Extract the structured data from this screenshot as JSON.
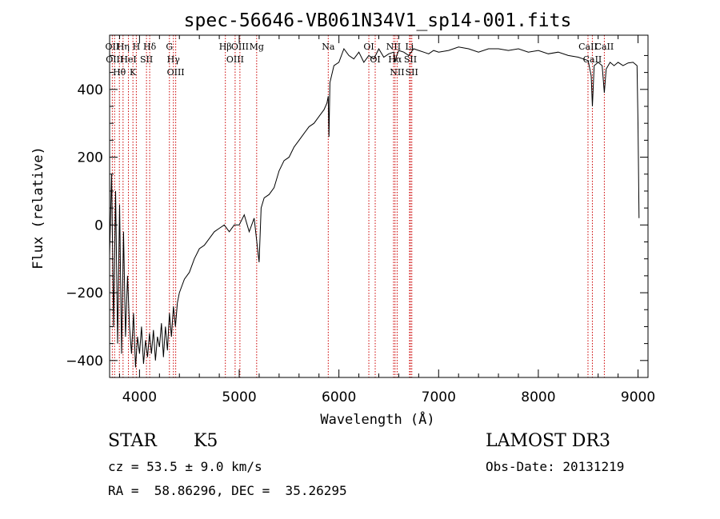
{
  "chart_data": {
    "type": "line",
    "title": "spec-56646-VB061N34V1_sp14-001.fits",
    "xlabel": "Wavelength (Å)",
    "ylabel": "Flux (relative)",
    "xlim": [
      3700,
      9100
    ],
    "ylim": [
      -450,
      560
    ],
    "x_ticks": [
      4000,
      5000,
      6000,
      7000,
      8000,
      9000
    ],
    "y_ticks": [
      -400,
      -200,
      0,
      200,
      400
    ],
    "grid": false,
    "series": [
      {
        "name": "flux",
        "x": [
          3700,
          3720,
          3740,
          3760,
          3780,
          3800,
          3820,
          3840,
          3860,
          3880,
          3900,
          3920,
          3940,
          3960,
          3980,
          4000,
          4020,
          4040,
          4060,
          4080,
          4100,
          4120,
          4140,
          4160,
          4180,
          4200,
          4220,
          4240,
          4260,
          4280,
          4300,
          4320,
          4340,
          4360,
          4380,
          4400,
          4450,
          4500,
          4550,
          4600,
          4650,
          4700,
          4750,
          4800,
          4850,
          4900,
          4950,
          5000,
          5050,
          5100,
          5150,
          5180,
          5200,
          5220,
          5250,
          5300,
          5350,
          5400,
          5450,
          5500,
          5550,
          5600,
          5650,
          5700,
          5750,
          5800,
          5850,
          5880,
          5893,
          5900,
          5910,
          5950,
          6000,
          6050,
          6100,
          6150,
          6200,
          6250,
          6300,
          6350,
          6400,
          6450,
          6500,
          6550,
          6563,
          6580,
          6600,
          6650,
          6700,
          6750,
          6800,
          6850,
          6900,
          6950,
          7000,
          7100,
          7200,
          7300,
          7400,
          7500,
          7600,
          7700,
          7800,
          7900,
          8000,
          8100,
          8200,
          8300,
          8400,
          8450,
          8500,
          8530,
          8542,
          8560,
          8600,
          8640,
          8662,
          8680,
          8720,
          8760,
          8800,
          8850,
          8900,
          8950,
          8990,
          9000,
          9010
        ],
        "values": [
          -90,
          150,
          -300,
          100,
          -350,
          60,
          -380,
          -20,
          -330,
          -150,
          -300,
          -380,
          -260,
          -420,
          -330,
          -380,
          -300,
          -410,
          -340,
          -390,
          -320,
          -380,
          -310,
          -400,
          -330,
          -360,
          -290,
          -390,
          -300,
          -370,
          -260,
          -330,
          -240,
          -300,
          -230,
          -200,
          -160,
          -140,
          -100,
          -70,
          -60,
          -40,
          -20,
          -10,
          0,
          -20,
          0,
          0,
          30,
          -20,
          20,
          -60,
          -110,
          50,
          80,
          90,
          110,
          160,
          190,
          200,
          230,
          250,
          270,
          290,
          300,
          320,
          340,
          360,
          380,
          260,
          420,
          470,
          480,
          520,
          500,
          490,
          510,
          480,
          500,
          490,
          520,
          495,
          505,
          510,
          480,
          500,
          515,
          510,
          500,
          520,
          515,
          510,
          505,
          515,
          510,
          515,
          525,
          520,
          510,
          520,
          520,
          515,
          520,
          510,
          515,
          505,
          510,
          500,
          495,
          490,
          485,
          440,
          350,
          470,
          480,
          470,
          390,
          460,
          480,
          470,
          480,
          470,
          478,
          480,
          470,
          300,
          20
        ]
      }
    ],
    "line_annotations": [
      {
        "wavelength": 3727,
        "label": "OII"
      },
      {
        "wavelength": 3750,
        "label": "OIII"
      },
      {
        "wavelength": 3798,
        "label": "Hθ"
      },
      {
        "wavelength": 3835,
        "label": "Hη"
      },
      {
        "wavelength": 3889,
        "label": "HeI"
      },
      {
        "wavelength": 3934,
        "label": "K"
      },
      {
        "wavelength": 3968,
        "label": "H"
      },
      {
        "wavelength": 4070,
        "label": "SII"
      },
      {
        "wavelength": 4102,
        "label": "Hδ"
      },
      {
        "wavelength": 4300,
        "label": "G"
      },
      {
        "wavelength": 4340,
        "label": "Hγ"
      },
      {
        "wavelength": 4363,
        "label": "OIII"
      },
      {
        "wavelength": 4861,
        "label": "Hβ"
      },
      {
        "wavelength": 4959,
        "label": "OIII"
      },
      {
        "wavelength": 5007,
        "label": "OIII"
      },
      {
        "wavelength": 5175,
        "label": "Mg"
      },
      {
        "wavelength": 5893,
        "label": "Na"
      },
      {
        "wavelength": 6300,
        "label": "OI"
      },
      {
        "wavelength": 6364,
        "label": "OI"
      },
      {
        "wavelength": 6548,
        "label": "NII"
      },
      {
        "wavelength": 6563,
        "label": "Hα"
      },
      {
        "wavelength": 6584,
        "label": "NII"
      },
      {
        "wavelength": 6708,
        "label": "Li"
      },
      {
        "wavelength": 6717,
        "label": "SII"
      },
      {
        "wavelength": 6731,
        "label": "SII"
      },
      {
        "wavelength": 8498,
        "label": "CaII"
      },
      {
        "wavelength": 8542,
        "label": "CaII"
      },
      {
        "wavelength": 8662,
        "label": "CaII"
      }
    ]
  },
  "info": {
    "object_class": "STAR",
    "subclass": "K5",
    "redshift_line": "cz = 53.5 ± 9.0 km/s",
    "coords_line": "RA =  58.86296, DEC =  35.26295",
    "survey": "LAMOST DR3",
    "obs_date": "Obs-Date: 20131219"
  },
  "colors": {
    "line": "#000000",
    "annotation": "#cc0000",
    "axis": "#000000",
    "background": "#ffffff"
  }
}
